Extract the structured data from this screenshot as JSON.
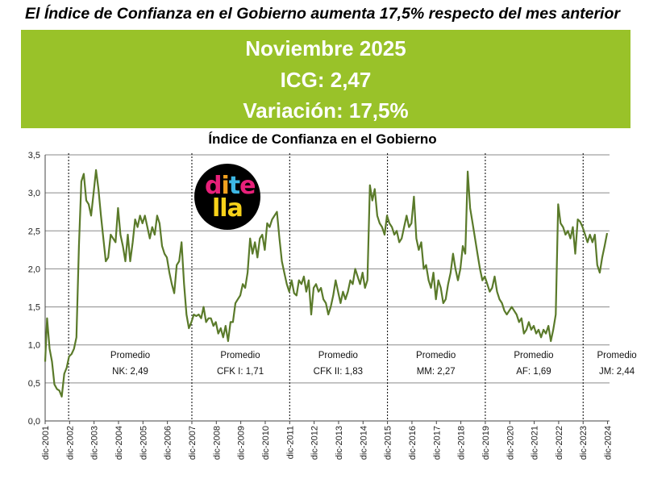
{
  "headline": "El Índice de Confianza en el Gobierno aumenta 17,5% respecto del mes anterior",
  "banner": {
    "line1": "Noviembre 2025",
    "line2": "ICG: 2,47",
    "line3": "Variación: 17,5%",
    "color": "#99c229"
  },
  "logo": {
    "line1": [
      "d",
      "i",
      "t",
      "e"
    ],
    "line2": [
      "l",
      "l",
      "a"
    ],
    "colors1": [
      "#e8207a",
      "#f2a11f",
      "#3db7e4",
      "#e8207a"
    ],
    "colors2": [
      "#f7d21a",
      "#f7d21a",
      "#f7d21a"
    ]
  },
  "chart_data": {
    "type": "line",
    "title": "Índice de Confianza en el Gobierno",
    "xlabel": "",
    "ylabel": "",
    "ylim": [
      0,
      3.5
    ],
    "yticks": [
      "0,0",
      "0,5",
      "1,0",
      "1,5",
      "2,0",
      "2,5",
      "3,0",
      "3,5"
    ],
    "xticks": [
      "dic-2001",
      "dic-2002",
      "dic-2003",
      "dic-2004",
      "dic-2005",
      "dic-2006",
      "dic-2007",
      "dic-2008",
      "dic-2009",
      "dic-2010",
      "dic-2011",
      "dic-2012",
      "dic-2013",
      "dic-2014",
      "dic-2015",
      "dic-2016",
      "dic-2017",
      "dic-2018",
      "dic-2019",
      "dic-2020",
      "dic-2021",
      "dic-2022",
      "dic-2023",
      "dic-2024"
    ],
    "grid": true,
    "line_color": "#5a7a2a",
    "series": [
      {
        "points": [
          [
            2001.92,
            0.78
          ],
          [
            2002.0,
            1.35
          ],
          [
            2002.1,
            0.95
          ],
          [
            2002.2,
            0.78
          ],
          [
            2002.3,
            0.48
          ],
          [
            2002.4,
            0.42
          ],
          [
            2002.5,
            0.4
          ],
          [
            2002.6,
            0.32
          ],
          [
            2002.7,
            0.62
          ],
          [
            2002.8,
            0.7
          ],
          [
            2002.9,
            0.85
          ],
          [
            2003.0,
            0.88
          ],
          [
            2003.1,
            0.95
          ],
          [
            2003.2,
            1.1
          ],
          [
            2003.3,
            2.3
          ],
          [
            2003.4,
            3.15
          ],
          [
            2003.5,
            3.25
          ],
          [
            2003.6,
            2.9
          ],
          [
            2003.7,
            2.85
          ],
          [
            2003.8,
            2.7
          ],
          [
            2003.9,
            3.0
          ],
          [
            2004.0,
            3.3
          ],
          [
            2004.1,
            3.05
          ],
          [
            2004.2,
            2.7
          ],
          [
            2004.3,
            2.4
          ],
          [
            2004.4,
            2.1
          ],
          [
            2004.5,
            2.15
          ],
          [
            2004.6,
            2.45
          ],
          [
            2004.7,
            2.4
          ],
          [
            2004.8,
            2.35
          ],
          [
            2004.9,
            2.8
          ],
          [
            2005.0,
            2.45
          ],
          [
            2005.1,
            2.3
          ],
          [
            2005.2,
            2.1
          ],
          [
            2005.3,
            2.45
          ],
          [
            2005.4,
            2.1
          ],
          [
            2005.5,
            2.35
          ],
          [
            2005.6,
            2.65
          ],
          [
            2005.7,
            2.55
          ],
          [
            2005.8,
            2.7
          ],
          [
            2005.9,
            2.6
          ],
          [
            2006.0,
            2.7
          ],
          [
            2006.1,
            2.55
          ],
          [
            2006.2,
            2.4
          ],
          [
            2006.3,
            2.55
          ],
          [
            2006.4,
            2.45
          ],
          [
            2006.5,
            2.7
          ],
          [
            2006.6,
            2.6
          ],
          [
            2006.7,
            2.3
          ],
          [
            2006.8,
            2.2
          ],
          [
            2006.9,
            2.15
          ],
          [
            2007.0,
            1.95
          ],
          [
            2007.1,
            1.8
          ],
          [
            2007.2,
            1.68
          ],
          [
            2007.3,
            2.05
          ],
          [
            2007.4,
            2.1
          ],
          [
            2007.5,
            2.35
          ],
          [
            2007.6,
            1.8
          ],
          [
            2007.7,
            1.4
          ],
          [
            2007.8,
            1.22
          ],
          [
            2007.9,
            1.3
          ],
          [
            2008.0,
            1.4
          ],
          [
            2008.1,
            1.38
          ],
          [
            2008.2,
            1.4
          ],
          [
            2008.3,
            1.35
          ],
          [
            2008.4,
            1.5
          ],
          [
            2008.5,
            1.3
          ],
          [
            2008.6,
            1.35
          ],
          [
            2008.7,
            1.35
          ],
          [
            2008.8,
            1.25
          ],
          [
            2008.9,
            1.3
          ],
          [
            2009.0,
            1.15
          ],
          [
            2009.1,
            1.22
          ],
          [
            2009.2,
            1.1
          ],
          [
            2009.3,
            1.25
          ],
          [
            2009.4,
            1.05
          ],
          [
            2009.5,
            1.3
          ],
          [
            2009.6,
            1.3
          ],
          [
            2009.7,
            1.55
          ],
          [
            2009.8,
            1.6
          ],
          [
            2009.9,
            1.65
          ],
          [
            2010.0,
            1.8
          ],
          [
            2010.1,
            1.75
          ],
          [
            2010.2,
            1.95
          ],
          [
            2010.3,
            2.4
          ],
          [
            2010.4,
            2.2
          ],
          [
            2010.5,
            2.35
          ],
          [
            2010.6,
            2.15
          ],
          [
            2010.7,
            2.4
          ],
          [
            2010.8,
            2.45
          ],
          [
            2010.9,
            2.25
          ],
          [
            2011.0,
            2.6
          ],
          [
            2011.1,
            2.55
          ],
          [
            2011.2,
            2.65
          ],
          [
            2011.3,
            2.7
          ],
          [
            2011.4,
            2.75
          ],
          [
            2011.5,
            2.4
          ],
          [
            2011.6,
            2.1
          ],
          [
            2011.7,
            1.95
          ],
          [
            2011.8,
            1.8
          ],
          [
            2011.9,
            1.7
          ],
          [
            2012.0,
            1.85
          ],
          [
            2012.1,
            1.68
          ],
          [
            2012.2,
            1.65
          ],
          [
            2012.3,
            1.85
          ],
          [
            2012.4,
            1.8
          ],
          [
            2012.5,
            1.9
          ],
          [
            2012.6,
            1.7
          ],
          [
            2012.7,
            1.85
          ],
          [
            2012.8,
            1.4
          ],
          [
            2012.9,
            1.75
          ],
          [
            2013.0,
            1.8
          ],
          [
            2013.1,
            1.7
          ],
          [
            2013.2,
            1.75
          ],
          [
            2013.3,
            1.6
          ],
          [
            2013.4,
            1.55
          ],
          [
            2013.5,
            1.4
          ],
          [
            2013.6,
            1.5
          ],
          [
            2013.7,
            1.65
          ],
          [
            2013.8,
            1.85
          ],
          [
            2013.9,
            1.7
          ],
          [
            2014.0,
            1.55
          ],
          [
            2014.1,
            1.7
          ],
          [
            2014.2,
            1.6
          ],
          [
            2014.3,
            1.7
          ],
          [
            2014.4,
            1.85
          ],
          [
            2014.5,
            1.8
          ],
          [
            2014.6,
            2.0
          ],
          [
            2014.7,
            1.9
          ],
          [
            2014.8,
            1.8
          ],
          [
            2014.9,
            1.95
          ],
          [
            2015.0,
            1.75
          ],
          [
            2015.1,
            1.85
          ],
          [
            2015.2,
            3.1
          ],
          [
            2015.3,
            2.9
          ],
          [
            2015.4,
            3.05
          ],
          [
            2015.5,
            2.7
          ],
          [
            2015.6,
            2.6
          ],
          [
            2015.7,
            2.55
          ],
          [
            2015.8,
            2.45
          ],
          [
            2015.9,
            2.7
          ],
          [
            2016.0,
            2.6
          ],
          [
            2016.1,
            2.55
          ],
          [
            2016.2,
            2.45
          ],
          [
            2016.3,
            2.5
          ],
          [
            2016.4,
            2.35
          ],
          [
            2016.5,
            2.4
          ],
          [
            2016.6,
            2.55
          ],
          [
            2016.7,
            2.7
          ],
          [
            2016.8,
            2.55
          ],
          [
            2016.9,
            2.6
          ],
          [
            2017.0,
            2.95
          ],
          [
            2017.1,
            2.4
          ],
          [
            2017.2,
            2.25
          ],
          [
            2017.3,
            2.35
          ],
          [
            2017.4,
            2.0
          ],
          [
            2017.5,
            2.05
          ],
          [
            2017.6,
            1.85
          ],
          [
            2017.7,
            1.75
          ],
          [
            2017.8,
            1.95
          ],
          [
            2017.9,
            1.6
          ],
          [
            2018.0,
            1.85
          ],
          [
            2018.1,
            1.75
          ],
          [
            2018.2,
            1.55
          ],
          [
            2018.3,
            1.6
          ],
          [
            2018.4,
            1.8
          ],
          [
            2018.5,
            1.95
          ],
          [
            2018.6,
            2.2
          ],
          [
            2018.7,
            2.0
          ],
          [
            2018.8,
            1.85
          ],
          [
            2018.9,
            2.0
          ],
          [
            2019.0,
            2.3
          ],
          [
            2019.1,
            2.2
          ],
          [
            2019.2,
            3.28
          ],
          [
            2019.3,
            2.8
          ],
          [
            2019.4,
            2.6
          ],
          [
            2019.5,
            2.4
          ],
          [
            2019.6,
            2.2
          ],
          [
            2019.7,
            2.0
          ],
          [
            2019.8,
            1.85
          ],
          [
            2019.9,
            1.9
          ],
          [
            2020.0,
            1.8
          ],
          [
            2020.1,
            1.7
          ],
          [
            2020.2,
            1.75
          ],
          [
            2020.3,
            1.9
          ],
          [
            2020.4,
            1.7
          ],
          [
            2020.5,
            1.6
          ],
          [
            2020.6,
            1.55
          ],
          [
            2020.7,
            1.45
          ],
          [
            2020.8,
            1.4
          ],
          [
            2020.9,
            1.45
          ],
          [
            2021.0,
            1.5
          ],
          [
            2021.1,
            1.45
          ],
          [
            2021.2,
            1.4
          ],
          [
            2021.3,
            1.3
          ],
          [
            2021.4,
            1.35
          ],
          [
            2021.5,
            1.15
          ],
          [
            2021.6,
            1.2
          ],
          [
            2021.7,
            1.3
          ],
          [
            2021.8,
            1.2
          ],
          [
            2021.9,
            1.25
          ],
          [
            2022.0,
            1.15
          ],
          [
            2022.1,
            1.2
          ],
          [
            2022.2,
            1.1
          ],
          [
            2022.3,
            1.2
          ],
          [
            2022.4,
            1.15
          ],
          [
            2022.5,
            1.25
          ],
          [
            2022.6,
            1.05
          ],
          [
            2022.7,
            1.2
          ],
          [
            2022.8,
            1.4
          ],
          [
            2022.9,
            2.85
          ],
          [
            2023.0,
            2.6
          ],
          [
            2023.1,
            2.55
          ],
          [
            2023.2,
            2.45
          ],
          [
            2023.3,
            2.5
          ],
          [
            2023.4,
            2.4
          ],
          [
            2023.5,
            2.55
          ],
          [
            2023.6,
            2.2
          ],
          [
            2023.7,
            2.65
          ],
          [
            2023.8,
            2.62
          ],
          [
            2023.9,
            2.55
          ],
          [
            2024.0,
            2.45
          ],
          [
            2024.1,
            2.35
          ],
          [
            2024.2,
            2.45
          ],
          [
            2024.3,
            2.35
          ],
          [
            2024.4,
            2.45
          ],
          [
            2024.5,
            2.05
          ],
          [
            2024.6,
            1.95
          ],
          [
            2024.7,
            2.15
          ],
          [
            2024.8,
            2.3
          ],
          [
            2024.9,
            2.47
          ]
        ]
      }
    ],
    "vlines": [
      2002.88,
      2007.92,
      2011.92,
      2015.92,
      2019.92,
      2023.92
    ],
    "periods": [
      {
        "label": "Promedio",
        "sub": "NK: 2,49",
        "x": 2005.4
      },
      {
        "label": "Promedio",
        "sub": "CFK I: 1,71",
        "x": 2009.9
      },
      {
        "label": "Promedio",
        "sub": "CFK II: 1,83",
        "x": 2013.9
      },
      {
        "label": "Promedio",
        "sub": "MM: 2,27",
        "x": 2017.9
      },
      {
        "label": "Promedio",
        "sub": "AF: 1,69",
        "x": 2021.9
      },
      {
        "label": "Promedio",
        "sub": "JM: 2,44",
        "x": 2025.3
      }
    ]
  }
}
